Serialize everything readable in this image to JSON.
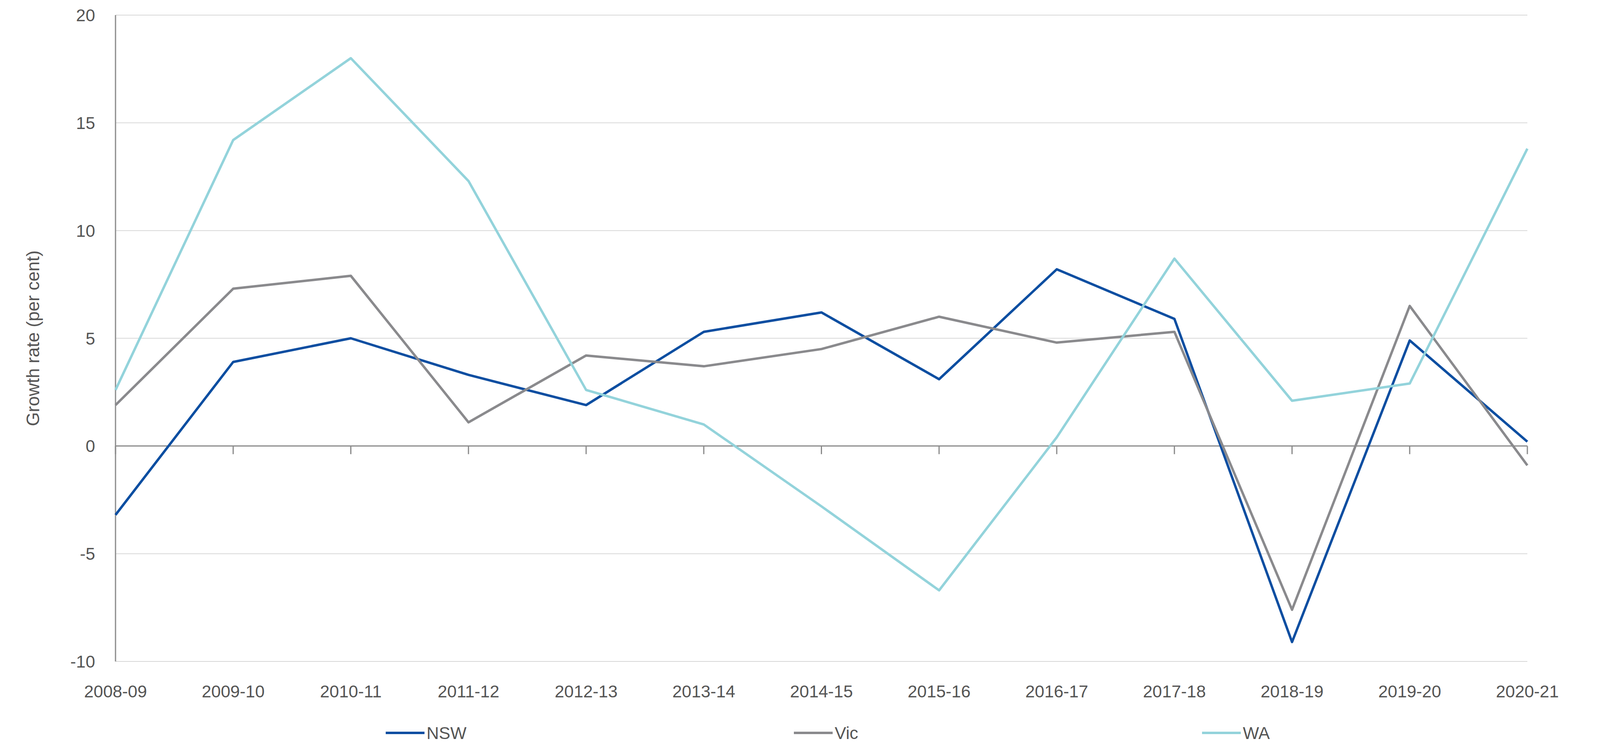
{
  "chart_data": {
    "type": "line",
    "y_label": "Growth rate (per cent)",
    "categories": [
      "2008-09",
      "2009-10",
      "2010-11",
      "2011-12",
      "2012-13",
      "2013-14",
      "2014-15",
      "2015-16",
      "2016-17",
      "2017-18",
      "2018-19",
      "2019-20",
      "2020-21"
    ],
    "series": [
      {
        "name": "NSW",
        "color": "#0d4ea1",
        "values": [
          -3.2,
          3.9,
          5.0,
          3.3,
          1.9,
          5.3,
          6.2,
          3.1,
          8.2,
          5.9,
          -9.1,
          4.9,
          0.2
        ]
      },
      {
        "name": "Vic",
        "color": "#8a8a8d",
        "values": [
          1.9,
          7.3,
          7.9,
          1.1,
          4.2,
          3.7,
          4.5,
          6.0,
          4.8,
          5.3,
          -7.6,
          6.5,
          -0.9
        ]
      },
      {
        "name": "WA",
        "color": "#93d3db",
        "values": [
          2.6,
          14.2,
          18.0,
          12.3,
          2.6,
          1.0,
          -2.8,
          -6.7,
          0.4,
          8.7,
          2.1,
          2.9,
          13.8
        ]
      }
    ],
    "ylim": [
      -10,
      20
    ],
    "yticks": [
      -10,
      -5,
      0,
      5,
      10,
      15,
      20
    ],
    "grid": true,
    "legend": "bottom"
  }
}
